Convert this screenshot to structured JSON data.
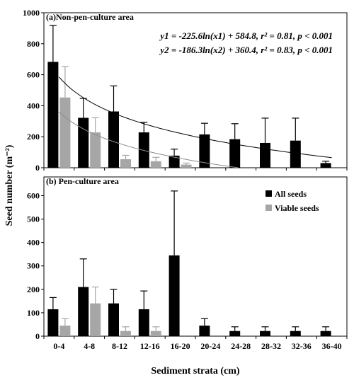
{
  "chart_data": [
    {
      "type": "bar",
      "title": "(a)Non-pen-culture area",
      "categories": [
        "0-4",
        "4-8",
        "8-12",
        "12-16",
        "16-20",
        "20-24",
        "24-28",
        "28-32",
        "32-36",
        "36-40"
      ],
      "series": [
        {
          "name": "All seeds",
          "color": "#000000",
          "values": [
            683,
            322,
            363,
            228,
            78,
            215,
            184,
            160,
            175,
            30
          ],
          "errors": [
            235,
            125,
            165,
            65,
            42,
            72,
            100,
            160,
            145,
            12
          ]
        },
        {
          "name": "Viable seeds",
          "color": "#a6a6a6",
          "values": [
            453,
            228,
            55,
            42,
            20,
            null,
            null,
            null,
            null,
            null
          ],
          "errors": [
            200,
            95,
            25,
            25,
            10,
            null,
            null,
            null,
            null,
            null
          ]
        }
      ],
      "fits": [
        {
          "label": "y1 = -225.6ln(x1) + 584.8, r² = 0.81, p < 0.001",
          "a": -225.6,
          "b": 584.8,
          "color": "#000000"
        },
        {
          "label": "y2 = -186.3ln(x2) + 360.4, r² = 0.83, p < 0.001",
          "a": -186.3,
          "b": 360.4,
          "color": "#8c8c8c"
        }
      ],
      "ylim": [
        0,
        1000
      ],
      "yticks": [
        0,
        200,
        400,
        600,
        800,
        1000
      ]
    },
    {
      "type": "bar",
      "title": "(b) Pen-culture area",
      "categories": [
        "0-4",
        "4-8",
        "8-12",
        "12-16",
        "16-20",
        "20-24",
        "24-28",
        "28-32",
        "32-36",
        "36-40"
      ],
      "series": [
        {
          "name": "All seeds",
          "color": "#000000",
          "values": [
            115,
            210,
            140,
            115,
            345,
            45,
            22,
            22,
            22,
            22
          ],
          "errors": [
            50,
            120,
            60,
            78,
            275,
            30,
            18,
            18,
            18,
            18
          ]
        },
        {
          "name": "Viable seeds",
          "color": "#a6a6a6",
          "values": [
            45,
            140,
            22,
            22,
            null,
            null,
            null,
            null,
            null,
            null
          ],
          "errors": [
            30,
            70,
            18,
            18,
            null,
            null,
            null,
            null,
            null,
            null
          ]
        }
      ],
      "legend_position": "top-right",
      "ylim": [
        0,
        680
      ],
      "yticks": [
        0,
        100,
        200,
        300,
        400,
        500,
        600
      ]
    }
  ],
  "ylabel": "Seed number (m⁻²)",
  "xlabel": "Sediment strata (cm)"
}
